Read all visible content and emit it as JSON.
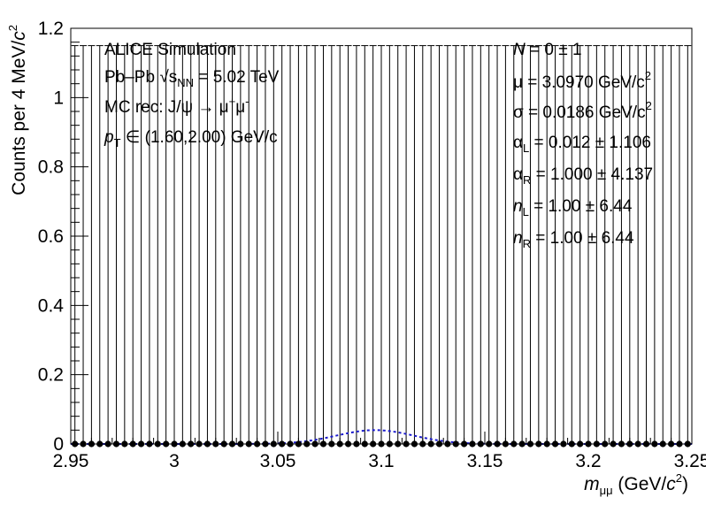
{
  "chart_data": {
    "type": "scatter",
    "xlabel": "m_μμ (GeV/c²)",
    "ylabel": "Counts per 4 MeV/c²",
    "xlim": [
      2.95,
      3.25
    ],
    "ylim": [
      0,
      1.2
    ],
    "bin_width": 0.004,
    "x_ticks": [
      "2.95",
      "3",
      "3.05",
      "3.1",
      "3.15",
      "3.2",
      "3.25"
    ],
    "y_ticks": [
      "0",
      "0.2",
      "0.4",
      "0.6",
      "0.8",
      "1",
      "1.2"
    ],
    "series": [
      {
        "values": "all bins = 0",
        "error_high": 1.15,
        "error_low": 0,
        "color": "#000000"
      },
      {
        "values": "Crystal Ball fit",
        "mean": 3.097,
        "sigma": 0.0186,
        "amplitude": 0.04,
        "color": "#1a1acc"
      }
    ],
    "annotations_left": [
      {
        "main": "ALICE Simulation"
      },
      {
        "main": "Pb–Pb  √s",
        "sub": "NN",
        "rest": " = 5.02 TeV"
      },
      {
        "main": "MC rec: J/ψ → μ",
        "sup1": "+",
        "mid": "μ",
        "sup2": "-"
      },
      {
        "main": "p",
        "sub": "T",
        "rest": " ∈ (1.60,2.00) GeV/c"
      }
    ],
    "annotations_right": [
      {
        "var": "N",
        "rest": " = 0 ± 1"
      },
      {
        "var": "μ",
        "rest": " = 3.0970 GeV/c",
        "sup": "2"
      },
      {
        "var": "σ",
        "rest": " = 0.0186 GeV/c",
        "sup": "2"
      },
      {
        "var": "α",
        "sub": "L",
        "rest": " = 0.012 ± 1.106"
      },
      {
        "var": "α",
        "sub": "R",
        "rest": " = 1.000 ± 4.137"
      },
      {
        "var": "n",
        "sub": "L",
        "rest": " = 1.00 ± 6.44"
      },
      {
        "var": "n",
        "sub": "R",
        "rest": " = 1.00 ± 6.44"
      }
    ]
  }
}
